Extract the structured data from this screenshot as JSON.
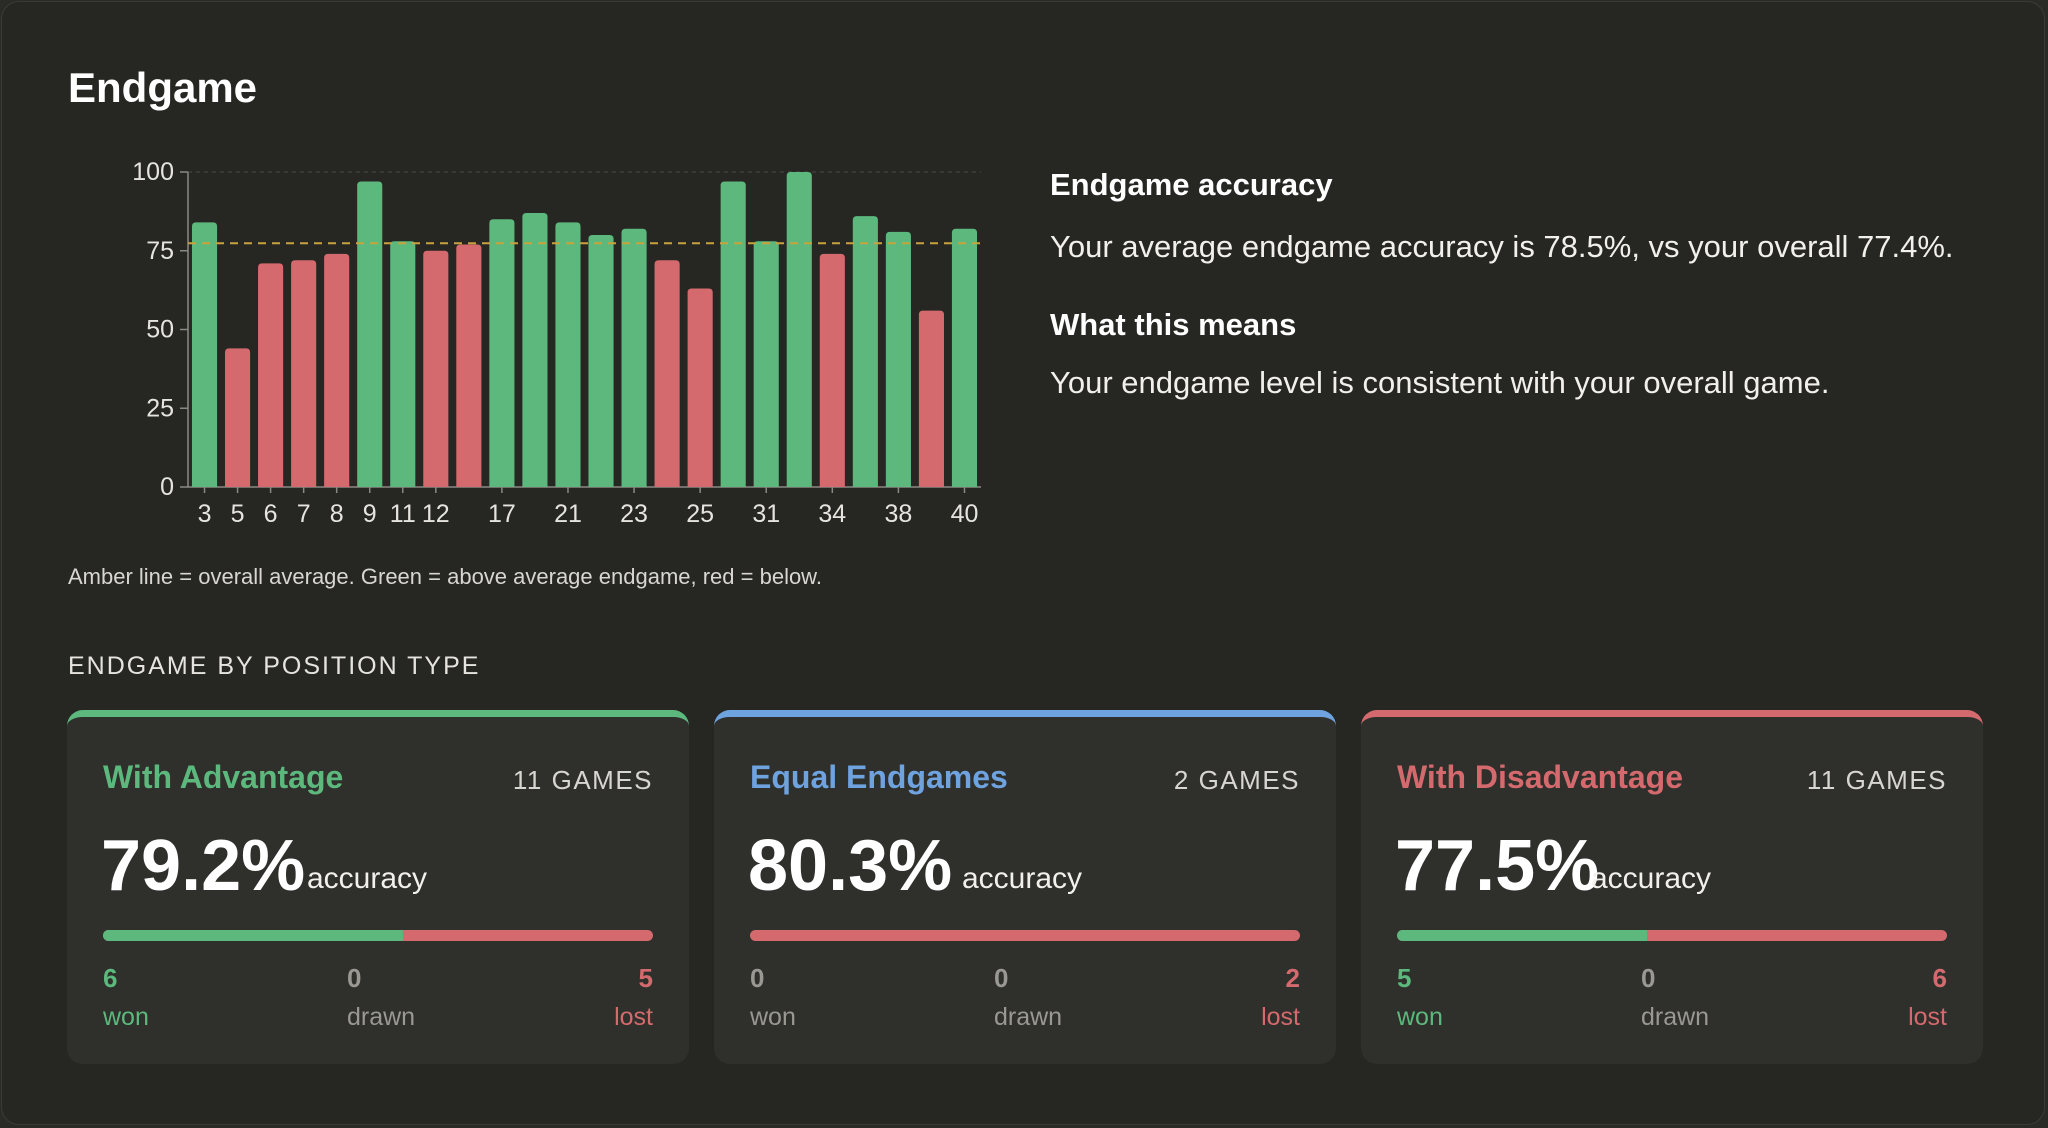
{
  "title": "Endgame",
  "caption": "Amber line = overall average. Green = above average endgame, red = below.",
  "info": {
    "heading1": "Endgame accuracy",
    "text1": "Your average endgame accuracy is 78.5%, vs your overall 77.4%.",
    "heading2": "What this means",
    "text2": "Your endgame level is consistent with your overall game."
  },
  "section_title": "ENDGAME BY POSITION TYPE",
  "colors": {
    "green": "#5cb87d",
    "red": "#d46a6d",
    "blue": "#6ea3df",
    "amber": "#c9a23c"
  },
  "cards": [
    {
      "name": "With Advantage",
      "games": "11 GAMES",
      "pct": "79.2%",
      "acc_label": "accuracy",
      "won": "6",
      "drawn": "0",
      "lost": "5",
      "won_label": "won",
      "drawn_label": "drawn",
      "lost_label": "lost",
      "won_fraction": 0.545,
      "accent": "#5cb87d"
    },
    {
      "name": "Equal Endgames",
      "games": "2 GAMES",
      "pct": "80.3%",
      "acc_label": "accuracy",
      "won": "0",
      "drawn": "0",
      "lost": "2",
      "won_label": "won",
      "drawn_label": "drawn",
      "lost_label": "lost",
      "won_fraction": 0,
      "accent": "#6ea3df"
    },
    {
      "name": "With Disadvantage",
      "games": "11 GAMES",
      "pct": "77.5%",
      "acc_label": "accuracy",
      "won": "5",
      "drawn": "0",
      "lost": "6",
      "won_label": "won",
      "drawn_label": "drawn",
      "lost_label": "lost",
      "won_fraction": 0.455,
      "accent": "#d46a6d"
    }
  ],
  "chart_data": {
    "type": "bar",
    "categories": [
      "3",
      "5",
      "6",
      "7",
      "8",
      "9",
      "11",
      "12",
      "",
      "17",
      "",
      "21",
      "",
      "23",
      "",
      "25",
      "",
      "31",
      "",
      "34",
      "",
      "38",
      "",
      "40"
    ],
    "values": [
      84,
      44,
      71,
      72,
      74,
      97,
      78,
      75,
      77,
      85,
      87,
      84,
      80,
      82,
      72,
      63,
      97,
      78,
      100,
      74,
      86,
      81,
      56,
      82
    ],
    "above_average": [
      true,
      false,
      false,
      false,
      false,
      true,
      true,
      false,
      false,
      true,
      true,
      true,
      true,
      true,
      false,
      false,
      true,
      true,
      true,
      false,
      true,
      true,
      false,
      true
    ],
    "reference_line": 77.4,
    "yticks": [
      0,
      25,
      50,
      75,
      100
    ],
    "ylim": [
      0,
      100
    ],
    "title": "",
    "xlabel": "",
    "ylabel": ""
  }
}
